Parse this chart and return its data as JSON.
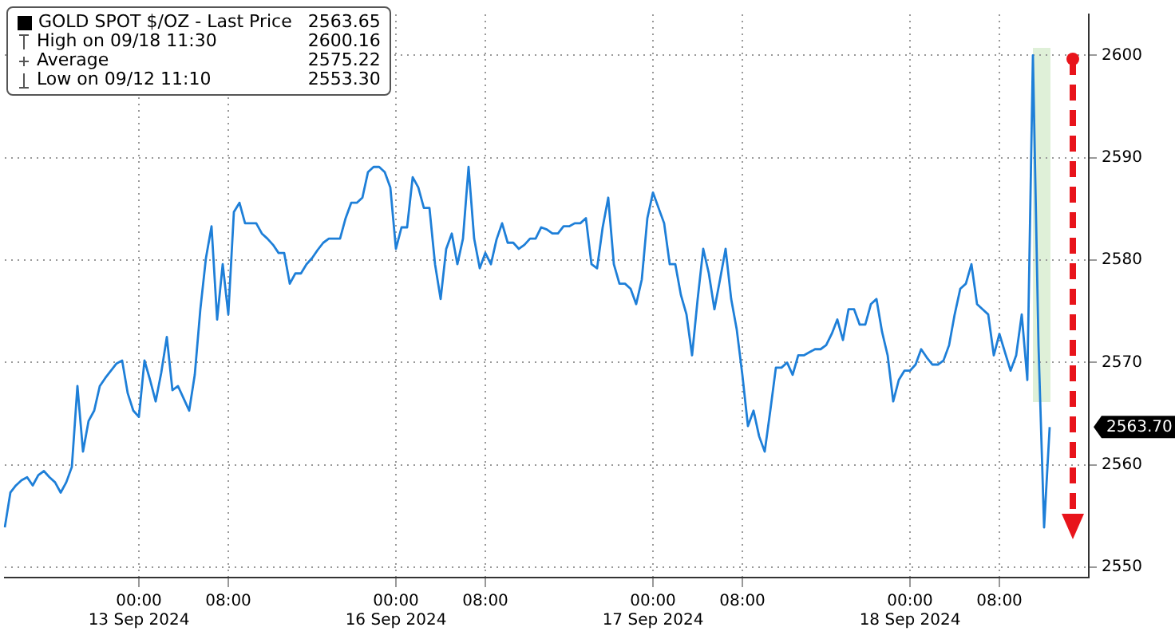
{
  "chart_data": {
    "type": "line",
    "categories": [
      null,
      null,
      null,
      null,
      null,
      null,
      null,
      null,
      null,
      null,
      null,
      null,
      null,
      null,
      null,
      null,
      null,
      null,
      null,
      null,
      null,
      null,
      null,
      null,
      "00:00\n13 Sep 2024",
      null,
      null,
      null,
      null,
      null,
      null,
      null,
      null,
      null,
      null,
      null,
      null,
      null,
      null,
      null,
      "08:00",
      null,
      null,
      null,
      null,
      null,
      null,
      null,
      null,
      null,
      null,
      null,
      null,
      null,
      null,
      null,
      null,
      null,
      null,
      null,
      null,
      null,
      null,
      null,
      null,
      null,
      null,
      null,
      null,
      null,
      "00:00\n16 Sep 2024",
      null,
      null,
      null,
      null,
      null,
      null,
      null,
      null,
      null,
      null,
      null,
      null,
      null,
      null,
      null,
      "08:00",
      null,
      null,
      null,
      null,
      null,
      null,
      null,
      null,
      null,
      null,
      null,
      null,
      null,
      null,
      null,
      null,
      null,
      null,
      null,
      null,
      null,
      null,
      null,
      null,
      null,
      null,
      null,
      null,
      null,
      "00:00\n17 Sep 2024",
      null,
      null,
      null,
      null,
      null,
      null,
      null,
      null,
      null,
      null,
      null,
      null,
      null,
      null,
      null,
      "08:00",
      null,
      null,
      null,
      null,
      null,
      null,
      null,
      null,
      null,
      null,
      null,
      null,
      null,
      null,
      null,
      null,
      null,
      null,
      null,
      null,
      null,
      null,
      null,
      null,
      null,
      null,
      null,
      null,
      null,
      "00:00\n18 Sep 2024",
      null,
      null,
      null,
      null,
      null,
      null,
      null,
      null,
      null,
      null,
      null,
      null,
      null,
      null,
      null,
      "08:00",
      null,
      null,
      null,
      null,
      null,
      null,
      null,
      null,
      null,
      null,
      null,
      null,
      null,
      null,
      null,
      null
    ],
    "series": [
      {
        "name": "GOLD SPOT $/OZ - Last Price",
        "color": "#1e7fd8",
        "values": [
          2553.9,
          2557.3,
          2558.0,
          2558.5,
          2558.8,
          2558.0,
          2559.0,
          2559.4,
          2558.8,
          2558.3,
          2557.3,
          2558.3,
          2559.8,
          2567.7,
          2561.3,
          2564.3,
          2565.3,
          2567.7,
          2568.5,
          2569.2,
          2569.9,
          2570.2,
          2567.0,
          2565.3,
          2564.7,
          2570.2,
          2568.3,
          2566.2,
          2569.0,
          2572.5,
          2567.3,
          2567.7,
          2566.5,
          2565.3,
          2568.8,
          2575.2,
          2580.2,
          2583.3,
          2574.2,
          2579.6,
          2574.7,
          2584.7,
          2585.6,
          2583.6,
          2583.6,
          2583.6,
          2582.6,
          2582.1,
          2581.5,
          2580.7,
          2580.7,
          2577.7,
          2578.7,
          2578.7,
          2579.6,
          2580.2,
          2581.0,
          2581.7,
          2582.1,
          2582.1,
          2582.1,
          2584.1,
          2585.6,
          2585.6,
          2586.1,
          2588.6,
          2589.1,
          2589.1,
          2588.6,
          2587.1,
          2581.1,
          2583.2,
          2583.2,
          2588.1,
          2587.1,
          2585.1,
          2585.1,
          2579.6,
          2576.2,
          2581.1,
          2582.6,
          2579.6,
          2582.1,
          2589.1,
          2582.1,
          2579.2,
          2580.7,
          2579.6,
          2582.0,
          2583.6,
          2581.7,
          2581.7,
          2581.1,
          2581.5,
          2582.1,
          2582.1,
          2583.2,
          2583.0,
          2582.6,
          2582.6,
          2583.3,
          2583.3,
          2583.6,
          2583.6,
          2584.1,
          2579.6,
          2579.2,
          2583.2,
          2586.1,
          2579.6,
          2577.7,
          2577.7,
          2577.2,
          2575.7,
          2578.1,
          2584.1,
          2586.6,
          2585.1,
          2583.6,
          2579.6,
          2579.6,
          2576.6,
          2574.7,
          2570.7,
          2576.2,
          2581.1,
          2578.7,
          2575.2,
          2578.1,
          2581.1,
          2576.2,
          2573.2,
          2568.8,
          2563.8,
          2565.3,
          2562.8,
          2561.3,
          2565.3,
          2569.5,
          2569.5,
          2570.0,
          2568.8,
          2570.7,
          2570.7,
          2571.0,
          2571.3,
          2571.3,
          2571.7,
          2572.8,
          2574.2,
          2572.2,
          2575.2,
          2575.2,
          2573.7,
          2573.7,
          2575.7,
          2576.2,
          2573.0,
          2570.7,
          2566.2,
          2568.3,
          2569.2,
          2569.2,
          2569.8,
          2571.3,
          2570.5,
          2569.8,
          2569.8,
          2570.2,
          2571.7,
          2574.7,
          2577.2,
          2577.7,
          2579.6,
          2575.7,
          2575.2,
          2574.7,
          2570.7,
          2572.8,
          2571.0,
          2569.2,
          2570.7,
          2574.7,
          2568.3,
          2600.0,
          2571.7,
          2553.9,
          2563.7,
          null,
          null,
          null,
          null,
          null,
          null,
          null
        ]
      }
    ],
    "ylim": [
      2549,
      2604
    ],
    "yticks": [
      2550,
      2560,
      2570,
      2580,
      2590,
      2600
    ],
    "grid": true,
    "legend": "top left",
    "annotations": [
      "2563.65",
      "High on 09/18 11:30",
      "2600.16",
      "Average",
      "2575.22",
      "Low on 09/12 11:10",
      "2553.30",
      "2563.70"
    ]
  }
}
